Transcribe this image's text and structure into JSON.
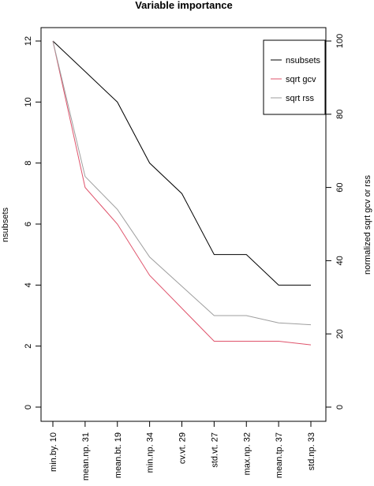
{
  "chart_data": {
    "type": "line",
    "title": "Variable importance",
    "categories": [
      "min.by. 10",
      "mean.np. 31",
      "mean.bt. 19",
      "min.np. 34",
      "cv.vt. 29",
      "std.vt. 27",
      "max.np. 32",
      "mean.tp. 37",
      "std.np. 33"
    ],
    "ylabel": "nsubsets",
    "y2label": "normalized sqrt gcv or rss",
    "ylim": [
      0,
      12
    ],
    "y2lim": [
      0,
      100
    ],
    "yticks": [
      0,
      2,
      4,
      6,
      8,
      10,
      12
    ],
    "y2ticks": [
      0,
      20,
      40,
      60,
      80,
      100
    ],
    "grid": false,
    "legend_position": "top-right",
    "series": [
      {
        "name": "nsubsets",
        "axis": "left",
        "color": "#000000",
        "values": [
          12,
          11,
          10,
          8,
          7,
          5,
          5,
          4,
          4
        ]
      },
      {
        "name": "sqrt gcv",
        "axis": "right",
        "color": "#df536b",
        "values": [
          100,
          60,
          50,
          36,
          27,
          18,
          18,
          18,
          17
        ]
      },
      {
        "name": "sqrt rss",
        "axis": "right",
        "color": "#9e9e9e",
        "values": [
          100,
          63,
          54,
          41,
          33,
          25,
          25,
          23,
          22.5
        ]
      }
    ]
  }
}
